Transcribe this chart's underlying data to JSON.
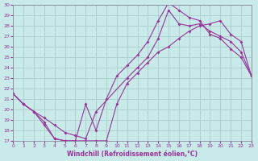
{
  "xlabel": "Windchill (Refroidissement éolien,°C)",
  "background_color": "#c8eae8",
  "grid_color": "#a8cece",
  "line_color": "#993399",
  "xlim": [
    0,
    23
  ],
  "ylim": [
    17,
    30
  ],
  "yticks": [
    17,
    18,
    19,
    20,
    21,
    22,
    23,
    24,
    25,
    26,
    27,
    28,
    29,
    30
  ],
  "xticks": [
    0,
    1,
    2,
    3,
    4,
    5,
    6,
    7,
    8,
    9,
    10,
    11,
    12,
    13,
    14,
    15,
    16,
    17,
    18,
    19,
    20,
    21,
    22,
    23
  ],
  "curve1_x": [
    0,
    1,
    2,
    3,
    4,
    5,
    6,
    7,
    8,
    9,
    10,
    11,
    12,
    13,
    14,
    15,
    16,
    17,
    18,
    19,
    20,
    21,
    22,
    23
  ],
  "curve1_y": [
    21.5,
    20.5,
    19.8,
    18.5,
    17.2,
    17.0,
    17.0,
    17.0,
    17.0,
    17.0,
    20.5,
    22.5,
    23.5,
    24.5,
    25.5,
    26.0,
    26.8,
    27.5,
    28.0,
    28.2,
    28.5,
    27.2,
    26.5,
    23.2
  ],
  "curve2_x": [
    0,
    1,
    2,
    3,
    4,
    5,
    6,
    7,
    8,
    9,
    10,
    11,
    12,
    13,
    14,
    15,
    16,
    17,
    18,
    19,
    20,
    21,
    22,
    23
  ],
  "curve2_y": [
    21.5,
    20.5,
    19.8,
    18.8,
    17.2,
    17.0,
    17.0,
    20.5,
    18.0,
    21.0,
    23.2,
    24.2,
    25.2,
    26.5,
    28.5,
    30.2,
    29.5,
    28.8,
    28.5,
    27.2,
    26.8,
    25.8,
    25.0,
    23.2
  ],
  "curve3_x": [
    0,
    1,
    2,
    3,
    4,
    5,
    6,
    7,
    8,
    11,
    12,
    13,
    14,
    15,
    16,
    17,
    18,
    19,
    20,
    21,
    22,
    23
  ],
  "curve3_y": [
    21.5,
    20.5,
    19.8,
    19.2,
    18.5,
    17.8,
    17.5,
    17.2,
    19.8,
    23.0,
    24.0,
    25.0,
    26.8,
    29.5,
    28.2,
    28.0,
    28.2,
    27.5,
    27.0,
    26.5,
    25.5,
    23.2
  ]
}
